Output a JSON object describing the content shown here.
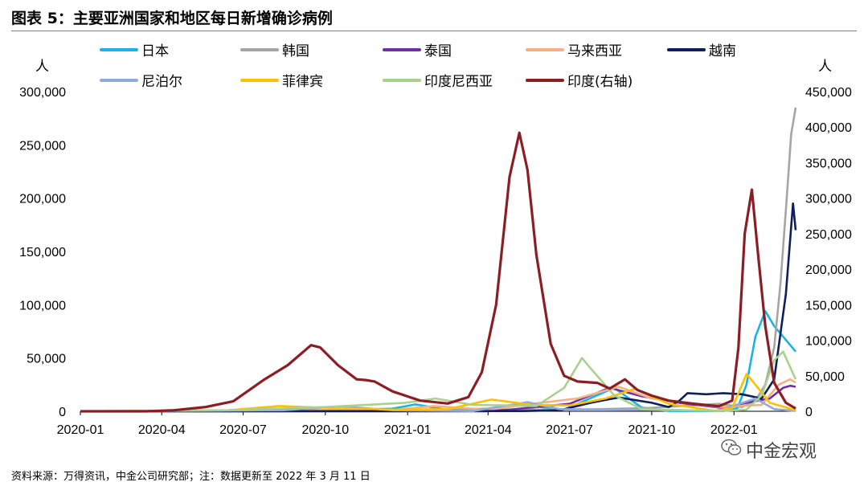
{
  "figure": {
    "title": "图表 5：主要亚洲国家和地区每日新增确诊病例",
    "left_unit": "人",
    "right_unit": "人",
    "source": "资料来源：万得资讯，中金公司研究部；注：数据更新至 2022 年 3 月 11 日",
    "watermark": "中金宏观"
  },
  "chart_data": {
    "type": "line",
    "title": "",
    "xlabel": "",
    "ylabel": "人",
    "y2label": "人",
    "ylim": [
      0,
      300000
    ],
    "y2lim": [
      0,
      450000
    ],
    "yticks": [
      "0",
      "50,000",
      "100,000",
      "150,000",
      "200,000",
      "250,000",
      "300,000"
    ],
    "y2ticks": [
      "0",
      "50,000",
      "100,000",
      "150,000",
      "200,000",
      "250,000",
      "300,000",
      "350,000",
      "400,000",
      "450,000"
    ],
    "xticks": [
      "2020-01",
      "2020-04",
      "2020-07",
      "2020-10",
      "2021-01",
      "2021-04",
      "2021-07",
      "2021-10",
      "2022-01"
    ],
    "x_range": [
      "2020-01-01",
      "2022-03-11"
    ],
    "grid": false,
    "legend_position": "top",
    "series": [
      {
        "name": "日本",
        "color": "#1ab3e6",
        "axis": "left",
        "points": [
          [
            "2020-01-01",
            0
          ],
          [
            "2020-07-01",
            0
          ],
          [
            "2020-08-05",
            1400
          ],
          [
            "2020-09-15",
            500
          ],
          [
            "2020-12-15",
            2500
          ],
          [
            "2021-01-10",
            6500
          ],
          [
            "2021-02-15",
            1200
          ],
          [
            "2021-04-01",
            2500
          ],
          [
            "2021-05-10",
            6000
          ],
          [
            "2021-06-25",
            1500
          ],
          [
            "2021-08-20",
            22000
          ],
          [
            "2021-09-20",
            3500
          ],
          [
            "2021-10-20",
            300
          ],
          [
            "2021-12-20",
            200
          ],
          [
            "2022-01-05",
            3000
          ],
          [
            "2022-01-15",
            25000
          ],
          [
            "2022-01-25",
            70000
          ],
          [
            "2022-02-05",
            94000
          ],
          [
            "2022-02-15",
            80000
          ],
          [
            "2022-02-25",
            70000
          ],
          [
            "2022-03-05",
            62000
          ],
          [
            "2022-03-11",
            56000
          ]
        ]
      },
      {
        "name": "韩国",
        "color": "#a5a5a5",
        "axis": "left",
        "points": [
          [
            "2020-01-01",
            0
          ],
          [
            "2020-12-25",
            1000
          ],
          [
            "2021-07-25",
            1800
          ],
          [
            "2021-09-25",
            3000
          ],
          [
            "2021-12-15",
            7000
          ],
          [
            "2022-01-10",
            4000
          ],
          [
            "2022-01-25",
            10000
          ],
          [
            "2022-02-05",
            25000
          ],
          [
            "2022-02-15",
            60000
          ],
          [
            "2022-02-22",
            120000
          ],
          [
            "2022-03-01",
            200000
          ],
          [
            "2022-03-06",
            260000
          ],
          [
            "2022-03-11",
            285000
          ]
        ]
      },
      {
        "name": "泰国",
        "color": "#7030a0",
        "axis": "left",
        "points": [
          [
            "2020-01-01",
            0
          ],
          [
            "2021-04-01",
            0
          ],
          [
            "2021-05-01",
            2000
          ],
          [
            "2021-07-01",
            7000
          ],
          [
            "2021-08-15",
            22000
          ],
          [
            "2021-09-20",
            14000
          ],
          [
            "2021-11-01",
            8000
          ],
          [
            "2021-12-20",
            3000
          ],
          [
            "2022-01-15",
            8000
          ],
          [
            "2022-02-10",
            12000
          ],
          [
            "2022-02-25",
            22000
          ],
          [
            "2022-03-05",
            24000
          ],
          [
            "2022-03-11",
            23000
          ]
        ]
      },
      {
        "name": "马来西亚",
        "color": "#f4b183",
        "axis": "left",
        "points": [
          [
            "2020-01-01",
            0
          ],
          [
            "2020-12-20",
            1500
          ],
          [
            "2021-01-30",
            5000
          ],
          [
            "2021-04-01",
            1500
          ],
          [
            "2021-05-30",
            8000
          ],
          [
            "2021-07-10",
            12000
          ],
          [
            "2021-08-25",
            23000
          ],
          [
            "2021-10-01",
            12000
          ],
          [
            "2021-12-15",
            4000
          ],
          [
            "2022-02-01",
            6000
          ],
          [
            "2022-02-20",
            25000
          ],
          [
            "2022-03-05",
            30000
          ],
          [
            "2022-03-11",
            27000
          ]
        ]
      },
      {
        "name": "越南",
        "color": "#0d1f5c",
        "axis": "left",
        "points": [
          [
            "2020-01-01",
            0
          ],
          [
            "2021-05-10",
            200
          ],
          [
            "2021-06-20",
            1000
          ],
          [
            "2021-07-25",
            8000
          ],
          [
            "2021-08-25",
            13000
          ],
          [
            "2021-10-01",
            8000
          ],
          [
            "2021-10-20",
            4000
          ],
          [
            "2021-11-01",
            10000
          ],
          [
            "2021-11-10",
            17000
          ],
          [
            "2021-12-01",
            16000
          ],
          [
            "2021-12-20",
            17000
          ],
          [
            "2022-01-10",
            16000
          ],
          [
            "2022-02-01",
            12000
          ],
          [
            "2022-02-15",
            30000
          ],
          [
            "2022-02-28",
            110000
          ],
          [
            "2022-03-08",
            195000
          ],
          [
            "2022-03-11",
            170000
          ]
        ]
      },
      {
        "name": "尼泊尔",
        "color": "#8faadc",
        "axis": "left",
        "points": [
          [
            "2020-01-01",
            0
          ],
          [
            "2020-08-15",
            1000
          ],
          [
            "2020-10-20",
            4500
          ],
          [
            "2020-12-15",
            1000
          ],
          [
            "2021-03-15",
            200
          ],
          [
            "2021-05-15",
            8500
          ],
          [
            "2021-06-20",
            2000
          ],
          [
            "2021-09-01",
            1500
          ],
          [
            "2021-12-15",
            500
          ],
          [
            "2022-01-25",
            12000
          ],
          [
            "2022-02-15",
            2000
          ],
          [
            "2022-03-11",
            300
          ]
        ]
      },
      {
        "name": "菲律宾",
        "color": "#ffc000",
        "axis": "left",
        "points": [
          [
            "2020-01-01",
            0
          ],
          [
            "2020-06-15",
            1000
          ],
          [
            "2020-08-10",
            5000
          ],
          [
            "2020-10-10",
            3000
          ],
          [
            "2020-12-20",
            1500
          ],
          [
            "2021-02-15",
            2000
          ],
          [
            "2021-04-05",
            11000
          ],
          [
            "2021-05-20",
            6000
          ],
          [
            "2021-07-01",
            5500
          ],
          [
            "2021-08-10",
            12000
          ],
          [
            "2021-09-12",
            21000
          ],
          [
            "2021-10-20",
            7000
          ],
          [
            "2021-12-10",
            500
          ],
          [
            "2021-12-30",
            3000
          ],
          [
            "2022-01-15",
            35000
          ],
          [
            "2022-01-25",
            25000
          ],
          [
            "2022-02-10",
            8000
          ],
          [
            "2022-03-11",
            1000
          ]
        ]
      },
      {
        "name": "印度尼西亚",
        "color": "#a9d18e",
        "axis": "left",
        "points": [
          [
            "2020-01-01",
            0
          ],
          [
            "2020-06-15",
            1000
          ],
          [
            "2020-10-01",
            4000
          ],
          [
            "2020-12-30",
            8000
          ],
          [
            "2021-02-01",
            12000
          ],
          [
            "2021-03-15",
            6000
          ],
          [
            "2021-05-25",
            5000
          ],
          [
            "2021-06-25",
            22000
          ],
          [
            "2021-07-15",
            50000
          ],
          [
            "2021-07-25",
            40000
          ],
          [
            "2021-08-20",
            15000
          ],
          [
            "2021-09-20",
            2000
          ],
          [
            "2021-12-15",
            200
          ],
          [
            "2022-01-15",
            1500
          ],
          [
            "2022-02-01",
            15000
          ],
          [
            "2022-02-15",
            48000
          ],
          [
            "2022-02-25",
            56000
          ],
          [
            "2022-03-11",
            30000
          ]
        ]
      },
      {
        "name": "印度(右轴)",
        "color": "#8b1e24",
        "axis": "right",
        "points": [
          [
            "2020-01-01",
            0
          ],
          [
            "2020-03-15",
            0
          ],
          [
            "2020-04-15",
            1500
          ],
          [
            "2020-05-20",
            6000
          ],
          [
            "2020-06-20",
            14000
          ],
          [
            "2020-07-25",
            45000
          ],
          [
            "2020-08-20",
            65000
          ],
          [
            "2020-09-15",
            93000
          ],
          [
            "2020-09-25",
            90000
          ],
          [
            "2020-10-15",
            65000
          ],
          [
            "2020-11-05",
            45000
          ],
          [
            "2020-11-15",
            44000
          ],
          [
            "2020-11-25",
            42000
          ],
          [
            "2020-12-15",
            28000
          ],
          [
            "2021-01-15",
            15000
          ],
          [
            "2021-02-15",
            11000
          ],
          [
            "2021-03-10",
            20000
          ],
          [
            "2021-03-25",
            55000
          ],
          [
            "2021-04-10",
            150000
          ],
          [
            "2021-04-25",
            330000
          ],
          [
            "2021-05-06",
            392000
          ],
          [
            "2021-05-15",
            340000
          ],
          [
            "2021-05-25",
            220000
          ],
          [
            "2021-06-10",
            95000
          ],
          [
            "2021-06-25",
            50000
          ],
          [
            "2021-07-10",
            42000
          ],
          [
            "2021-08-01",
            40000
          ],
          [
            "2021-08-15",
            32000
          ],
          [
            "2021-09-01",
            45000
          ],
          [
            "2021-09-15",
            30000
          ],
          [
            "2021-10-01",
            22000
          ],
          [
            "2021-10-20",
            15000
          ],
          [
            "2021-11-15",
            11000
          ],
          [
            "2021-12-15",
            7000
          ],
          [
            "2021-12-30",
            15000
          ],
          [
            "2022-01-06",
            90000
          ],
          [
            "2022-01-13",
            250000
          ],
          [
            "2022-01-21",
            312000
          ],
          [
            "2022-01-28",
            220000
          ],
          [
            "2022-02-05",
            120000
          ],
          [
            "2022-02-15",
            40000
          ],
          [
            "2022-02-28",
            12000
          ],
          [
            "2022-03-11",
            4000
          ]
        ]
      }
    ]
  }
}
